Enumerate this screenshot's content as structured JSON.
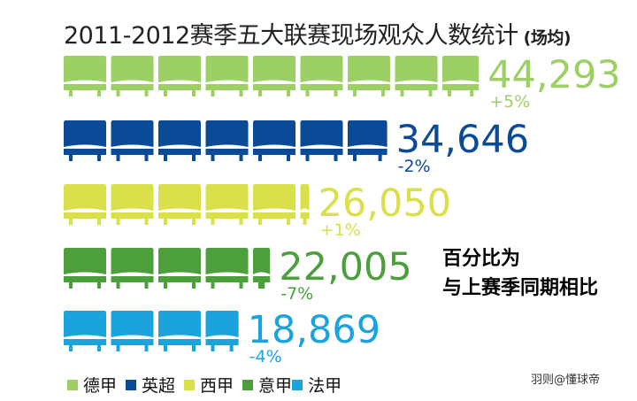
{
  "chart_data": {
    "type": "bar",
    "title": "2011-2012赛季五大联赛现场观众人数统计",
    "unit": "(场均)",
    "categories": [
      "德甲",
      "英超",
      "西甲",
      "意甲",
      "法甲"
    ],
    "values": [
      44293,
      34646,
      26050,
      22005,
      18869
    ],
    "value_labels": [
      "44,293",
      "34,646",
      "26,050",
      "22,005",
      "18,869"
    ],
    "change_labels": [
      "+5%",
      "-2%",
      "+1%",
      "-7%",
      "-4%"
    ],
    "colors": [
      "#9ccf64",
      "#0b4a96",
      "#d9e04a",
      "#4c9f3c",
      "#1aa3dc"
    ],
    "seat_unit": 5000,
    "annotation": [
      "百分比为",
      "与上赛季同期相比"
    ],
    "legend": [
      "德甲",
      "英超",
      "西甲",
      "意甲",
      "法甲"
    ],
    "legend_placement": "bottom-left",
    "grid": false
  },
  "credit": "羽则@懂球帝"
}
